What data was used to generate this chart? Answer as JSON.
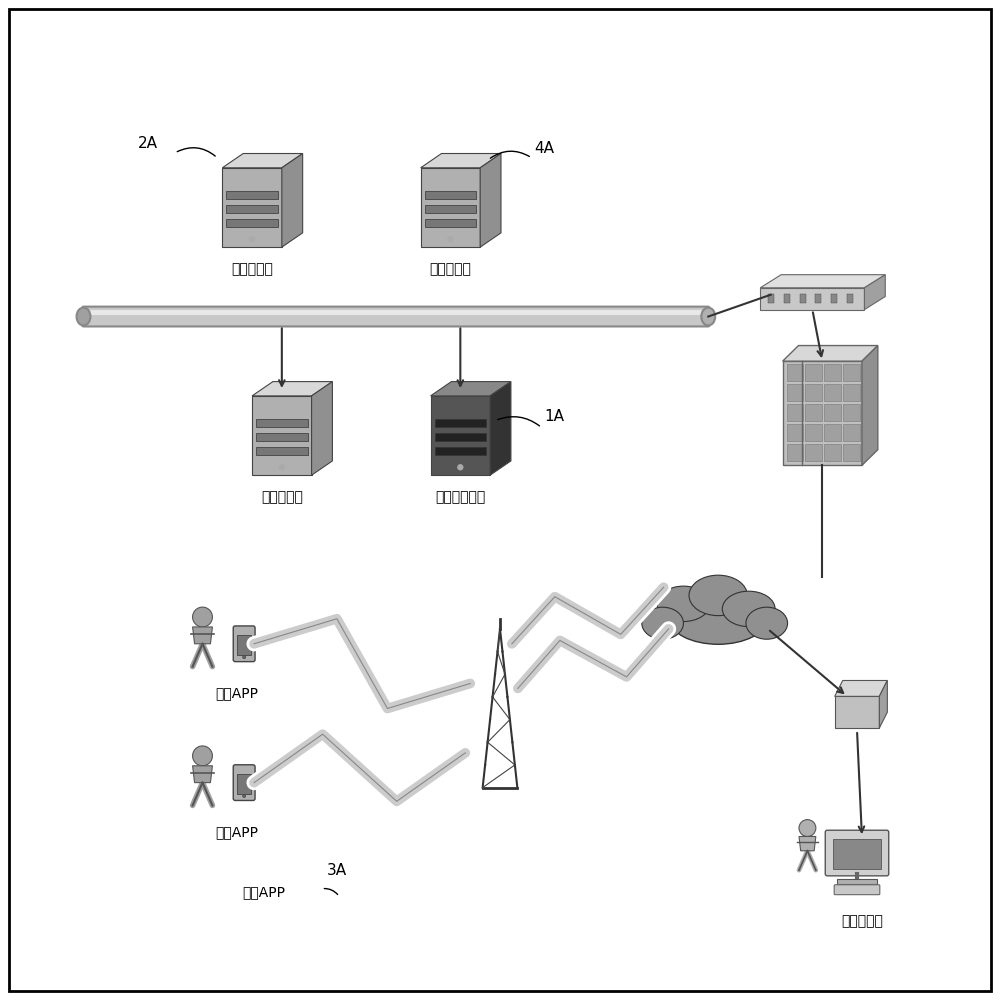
{
  "bg_color": "#ffffff",
  "border_color": "#000000",
  "labels": {
    "gateway_server": "网关服务器",
    "settlement_db": "结算中间库",
    "cache_server": "缓存服务器",
    "mgmt_backend": "管理后台服务",
    "zhihuo_app1": "拣货APP",
    "zhihuo_app2": "拣货APP",
    "smart_app": "智能APP",
    "backend_scheduler": "后台调度员",
    "label_1A": "1A",
    "label_2A": "2A",
    "label_3A": "3A",
    "label_4A": "4A"
  }
}
